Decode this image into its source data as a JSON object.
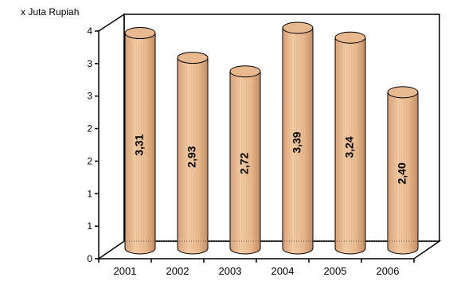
{
  "chart_data": {
    "type": "bar",
    "shape": "cylinder",
    "unit_label": "x Juta Rupiah",
    "categories": [
      "2001",
      "2002",
      "2003",
      "2004",
      "2005",
      "2006"
    ],
    "values": [
      3.31,
      2.93,
      2.72,
      3.39,
      3.24,
      2.4
    ],
    "data_labels": [
      "3,31",
      "2,93",
      "2,72",
      "3,39",
      "3,24",
      "2,40"
    ],
    "y_tick_labels": [
      "0",
      "1",
      "1",
      "2",
      "2",
      "3",
      "3",
      "4"
    ],
    "ylim": [
      0,
      3.5
    ],
    "grid": false,
    "legend": "none",
    "colors": {
      "bar_fill": "#e8b88e",
      "bar_stripe": "#c99168",
      "bar_outline": "#000000",
      "axis": "#000000"
    }
  }
}
